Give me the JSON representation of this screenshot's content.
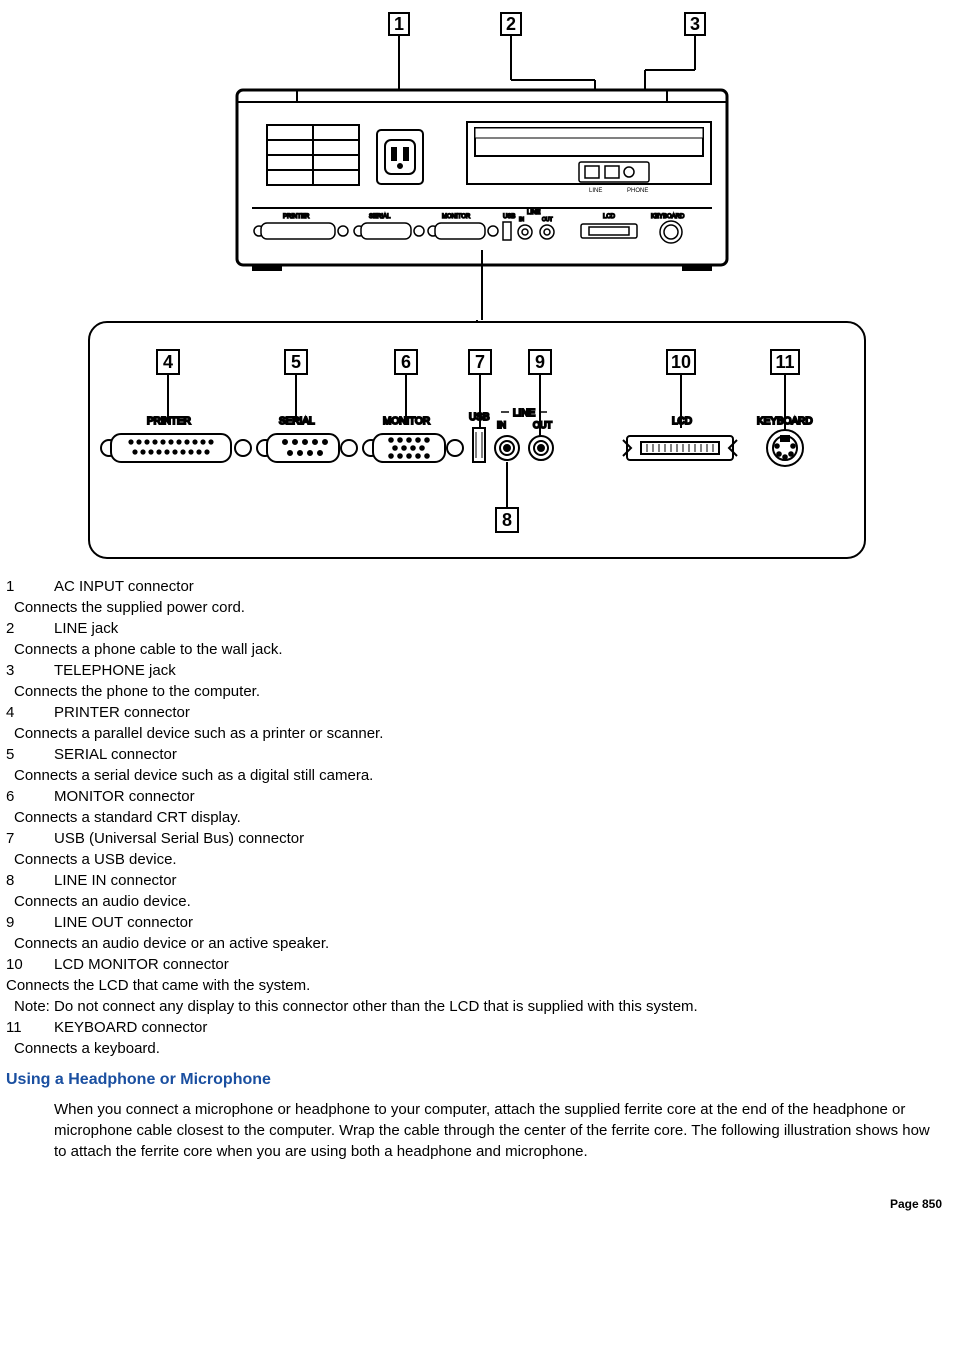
{
  "diagram": {
    "top_labels": [
      "1",
      "2",
      "3"
    ],
    "mid_labels": [
      "4",
      "5",
      "6",
      "7",
      "9",
      "10",
      "11"
    ],
    "bottom_label": "8",
    "port_labels_small": [
      "PRINTER",
      "SERIAL",
      "MONITOR",
      "USB",
      "LINE",
      "IN",
      "OUT",
      "LCD",
      "KEYBOARD"
    ],
    "port_labels_big": [
      "PRINTER",
      "SERIAL",
      "MONITOR",
      "USB",
      "LINE",
      "IN",
      "OUT",
      "LCD",
      "KEYBOARD"
    ],
    "stroke": "#000000",
    "fill_bg": "#ffffff",
    "label_box_size": 22,
    "label_font_size": 15
  },
  "connectors": [
    {
      "num": "1",
      "title": "AC INPUT connector",
      "desc": "Connects the supplied power cord."
    },
    {
      "num": "2",
      "title": "LINE jack",
      "desc": "Connects a phone cable to the wall jack."
    },
    {
      "num": "3",
      "title": "TELEPHONE jack",
      "desc": "Connects the phone to the computer."
    },
    {
      "num": "4",
      "title": "PRINTER connector",
      "desc": "Connects a parallel device such as a printer or scanner."
    },
    {
      "num": "5",
      "title": "SERIAL connector",
      "desc": "Connects a serial device such as a digital still camera."
    },
    {
      "num": "6",
      "title": "MONITOR connector",
      "desc": "Connects a standard CRT display."
    },
    {
      "num": "7",
      "title": "USB (Universal Serial Bus) connector",
      "desc": "Connects a USB device."
    },
    {
      "num": "8",
      "title": "LINE IN connector",
      "desc": "Connects an audio device."
    },
    {
      "num": "9",
      "title": "LINE OUT connector",
      "desc": "Connects an audio device or an active speaker."
    },
    {
      "num": "10",
      "title": "LCD MONITOR connector",
      "desc": "Connects the LCD that came with the system.",
      "note": "Note: Do not connect any display to this connector other than the LCD that is supplied with this system.",
      "flush": true
    },
    {
      "num": "11",
      "title": "KEYBOARD connector",
      "desc": "Connects a keyboard."
    }
  ],
  "section_heading": "Using a Headphone or Microphone",
  "section_body": "When you connect a microphone or headphone to your computer, attach the supplied ferrite core at the end of the headphone or microphone cable closest to the computer. Wrap the cable through the center of the ferrite core. The following illustration shows how to attach the ferrite core when you are using both a headphone and microphone.",
  "page_number": "Page 850"
}
